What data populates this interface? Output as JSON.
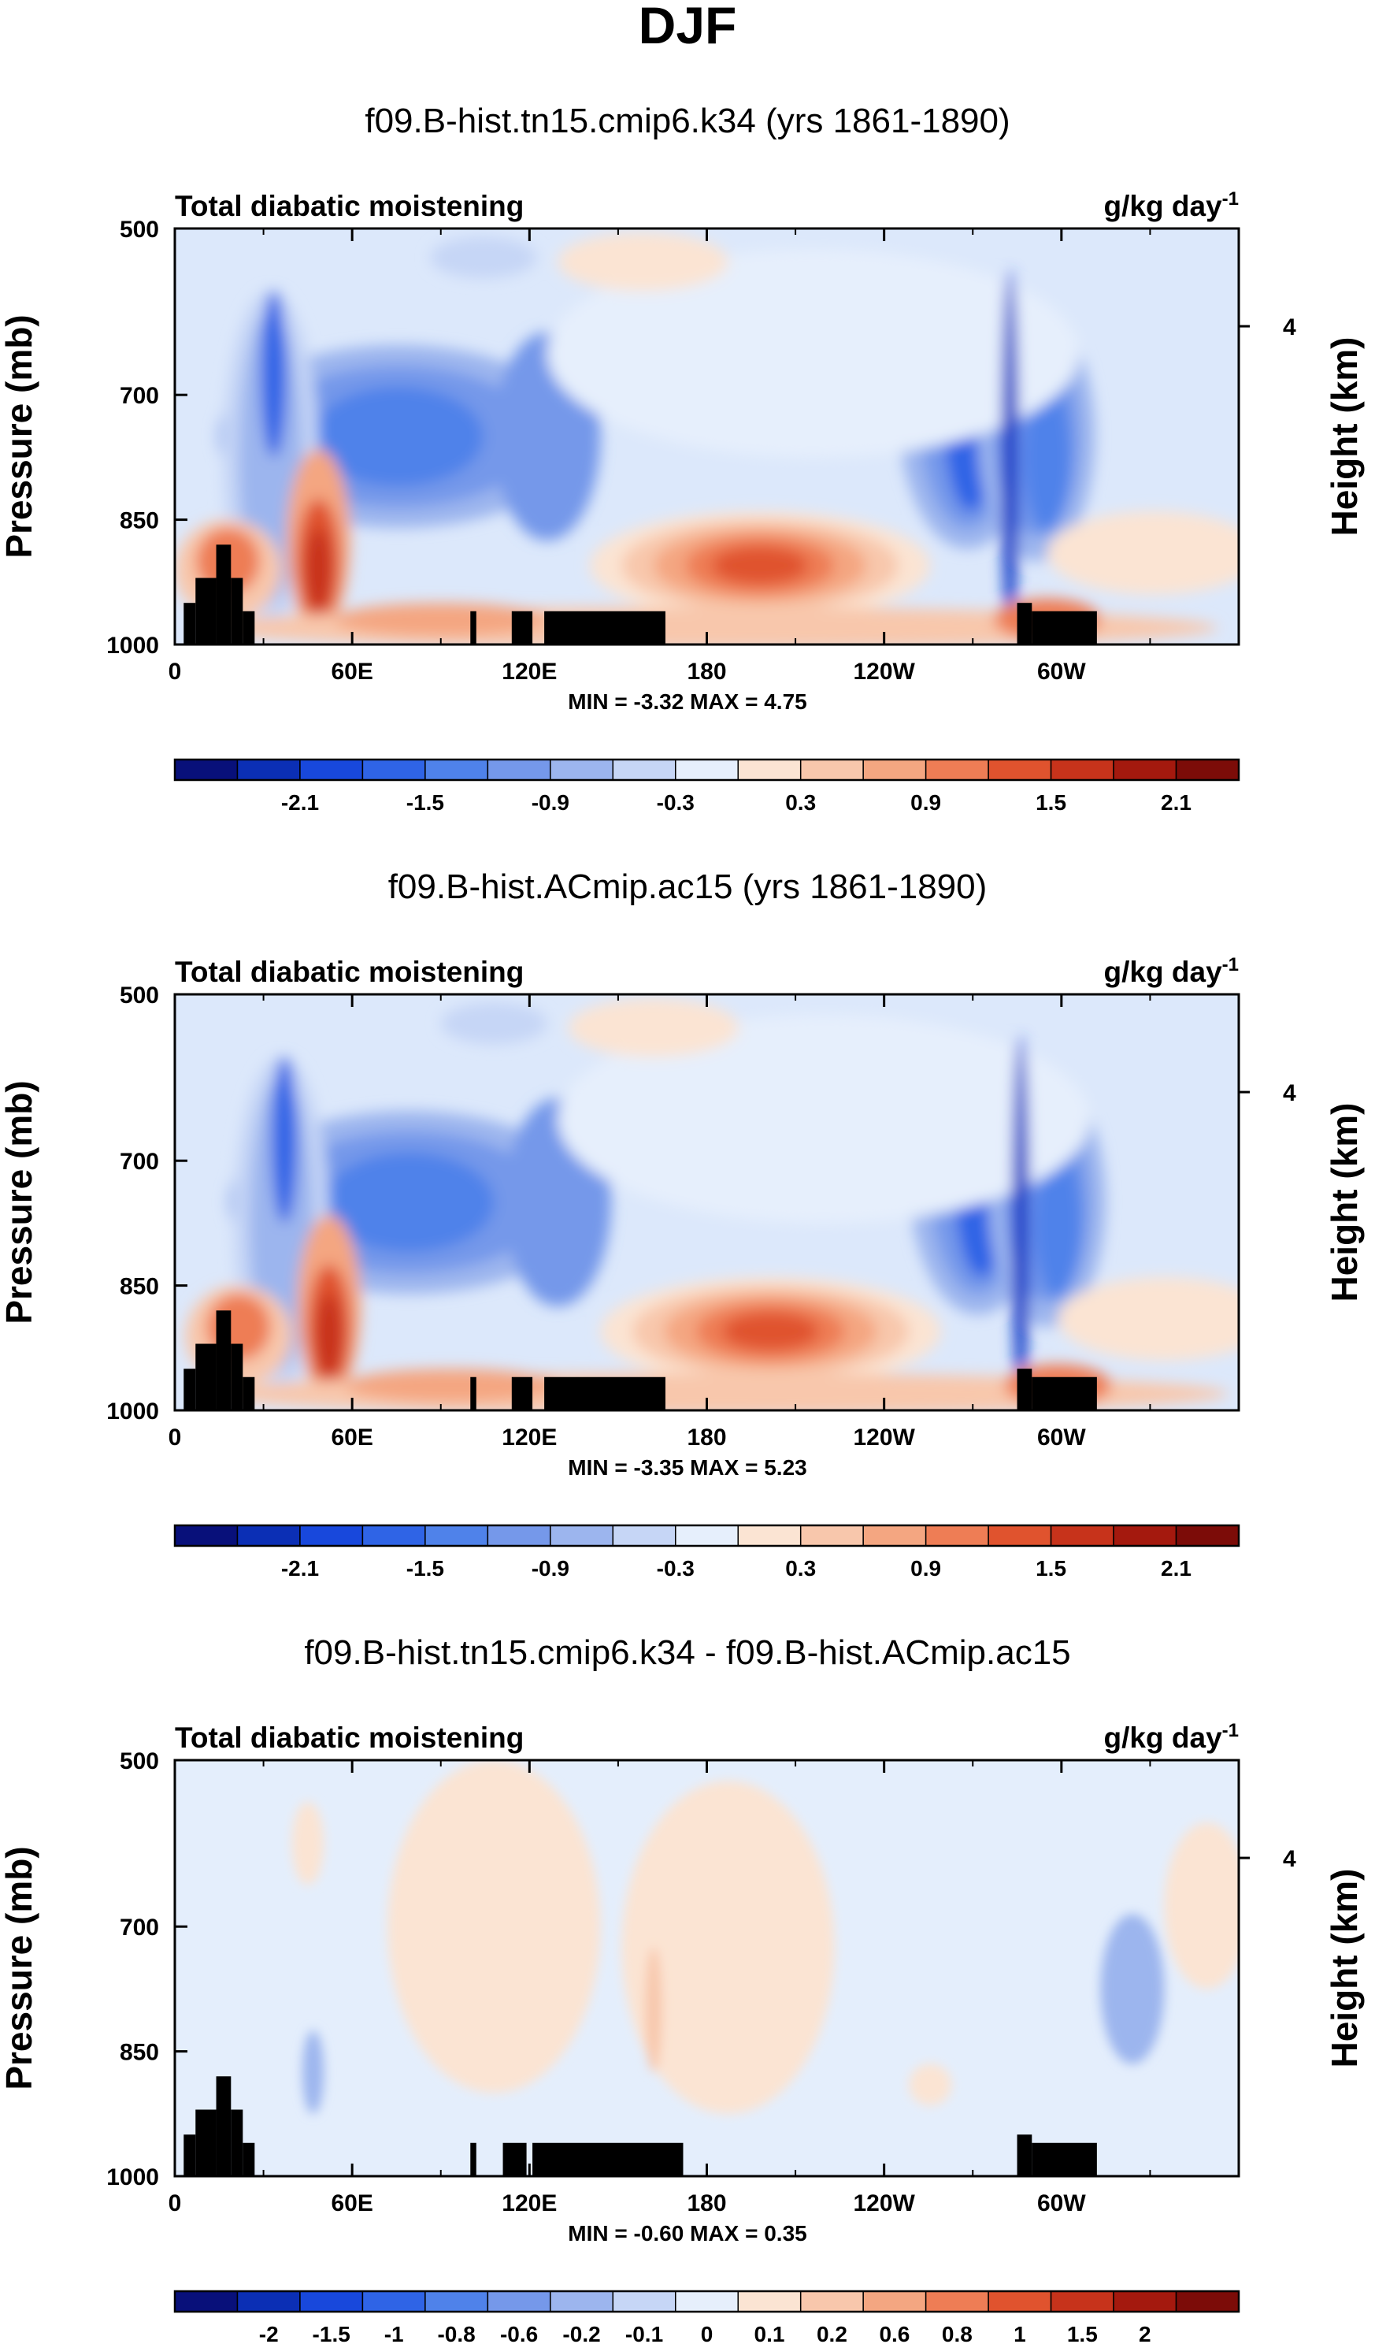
{
  "figure": {
    "title": "DJF"
  },
  "chart_data": [
    {
      "type": "heatmap",
      "title": "f09.B-hist.tn15.cmip6.k34 (yrs 1861-1890)",
      "left_label": "Total diabatic moistening",
      "units_label": "g/kg day",
      "units_exponent": "-1",
      "ylabel": "Pressure (mb)",
      "ylabel_right": "Height (km)",
      "x_ticks": [
        "0",
        "60E",
        "120E",
        "180",
        "120W",
        "60W"
      ],
      "x_tick_values": [
        0,
        60,
        120,
        180,
        240,
        300
      ],
      "xlim": [
        0,
        360
      ],
      "y_ticks": [
        "500",
        "700",
        "850",
        "1000"
      ],
      "y_tick_values": [
        500,
        700,
        850,
        1000
      ],
      "ylim": [
        1000,
        500
      ],
      "right_ticks": [
        "4"
      ],
      "stats": "MIN = -3.32  MAX = 4.75",
      "colorbar_labels": [
        "-2.1",
        "-1.5",
        "-0.9",
        "-0.3",
        "0.3",
        "0.9",
        "1.5",
        "2.1"
      ],
      "colorbar_label_slots": [
        1,
        3,
        5,
        7,
        9,
        11,
        13,
        15
      ],
      "min": -3.32,
      "max": 4.75
    },
    {
      "type": "heatmap",
      "title": "f09.B-hist.ACmip.ac15 (yrs 1861-1890)",
      "left_label": "Total diabatic moistening",
      "units_label": "g/kg day",
      "units_exponent": "-1",
      "ylabel": "Pressure (mb)",
      "ylabel_right": "Height (km)",
      "x_ticks": [
        "0",
        "60E",
        "120E",
        "180",
        "120W",
        "60W"
      ],
      "x_tick_values": [
        0,
        60,
        120,
        180,
        240,
        300
      ],
      "xlim": [
        0,
        360
      ],
      "y_ticks": [
        "500",
        "700",
        "850",
        "1000"
      ],
      "y_tick_values": [
        500,
        700,
        850,
        1000
      ],
      "ylim": [
        1000,
        500
      ],
      "right_ticks": [
        "4"
      ],
      "stats": "MIN = -3.35  MAX = 5.23",
      "colorbar_labels": [
        "-2.1",
        "-1.5",
        "-0.9",
        "-0.3",
        "0.3",
        "0.9",
        "1.5",
        "2.1"
      ],
      "colorbar_label_slots": [
        1,
        3,
        5,
        7,
        9,
        11,
        13,
        15
      ],
      "min": -3.35,
      "max": 5.23
    },
    {
      "type": "heatmap",
      "title": "f09.B-hist.tn15.cmip6.k34 - f09.B-hist.ACmip.ac15",
      "left_label": "Total diabatic moistening",
      "units_label": "g/kg day",
      "units_exponent": "-1",
      "ylabel": "Pressure (mb)",
      "ylabel_right": "Height (km)",
      "x_ticks": [
        "0",
        "60E",
        "120E",
        "180",
        "120W",
        "60W"
      ],
      "x_tick_values": [
        0,
        60,
        120,
        180,
        240,
        300
      ],
      "xlim": [
        0,
        360
      ],
      "y_ticks": [
        "500",
        "700",
        "850",
        "1000"
      ],
      "y_tick_values": [
        500,
        700,
        850,
        1000
      ],
      "ylim": [
        1000,
        500
      ],
      "right_ticks": [
        "4"
      ],
      "stats": "MIN = -0.60  MAX = 0.35",
      "colorbar_labels": [
        "-2",
        "-1.5",
        "-1",
        "-0.8",
        "-0.6",
        "-0.2",
        "-0.1",
        "0",
        "0.1",
        "0.2",
        "0.6",
        "0.8",
        "1",
        "1.5",
        "2"
      ],
      "colorbar_label_slots": [
        1,
        2,
        3,
        4,
        5,
        6,
        7,
        8,
        9,
        10,
        11,
        12,
        13,
        14,
        15
      ],
      "min": -0.6,
      "max": 0.35
    }
  ],
  "colors": {
    "colorbar": [
      "#08107a",
      "#0b2fb5",
      "#1848dc",
      "#2f64e6",
      "#4f82ea",
      "#7598ea",
      "#9cb5ee",
      "#c6d6f6",
      "#e6effc",
      "#fbe4d3",
      "#f8c7ac",
      "#f4a681",
      "#ee7d55",
      "#e0532e",
      "#c7331b",
      "#a4190e",
      "#7c0c08"
    ],
    "background_field": "#e4eefc"
  }
}
